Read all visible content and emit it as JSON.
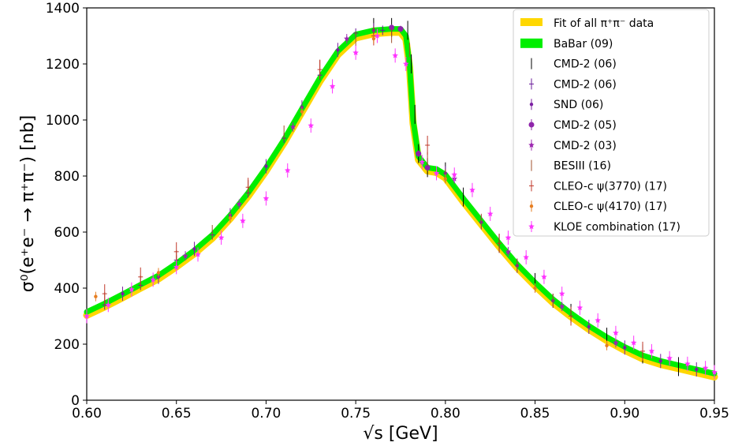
{
  "chart_data": {
    "type": "scatter",
    "title": "",
    "xlabel": "√s [GeV]",
    "ylabel": "σ⁰(e⁺e⁻ → π⁺π⁻) [nb]",
    "xlim": [
      0.6,
      0.95
    ],
    "ylim": [
      0,
      1400
    ],
    "xticks": [
      0.6,
      0.65,
      0.7,
      0.75,
      0.8,
      0.85,
      0.9,
      0.95
    ],
    "xtick_labels": [
      "0.60",
      "0.65",
      "0.70",
      "0.75",
      "0.80",
      "0.85",
      "0.90",
      "0.95"
    ],
    "yticks": [
      0,
      200,
      400,
      600,
      800,
      1000,
      1200,
      1400
    ],
    "ytick_labels": [
      "0",
      "200",
      "400",
      "600",
      "800",
      "1000",
      "1200",
      "1400"
    ],
    "grid": false,
    "legend_position": "top-right",
    "curve": {
      "x": [
        0.6,
        0.61,
        0.62,
        0.63,
        0.64,
        0.65,
        0.66,
        0.67,
        0.68,
        0.69,
        0.7,
        0.71,
        0.72,
        0.73,
        0.74,
        0.75,
        0.76,
        0.77,
        0.775,
        0.778,
        0.78,
        0.782,
        0.785,
        0.79,
        0.795,
        0.8,
        0.81,
        0.82,
        0.83,
        0.84,
        0.85,
        0.86,
        0.87,
        0.88,
        0.89,
        0.9,
        0.91,
        0.92,
        0.93,
        0.94,
        0.95
      ],
      "y": [
        315,
        345,
        378,
        412,
        445,
        488,
        535,
        590,
        660,
        740,
        830,
        930,
        1040,
        1150,
        1245,
        1305,
        1320,
        1325,
        1325,
        1300,
        1200,
        1000,
        870,
        830,
        825,
        805,
        720,
        640,
        560,
        485,
        420,
        360,
        310,
        265,
        225,
        190,
        160,
        140,
        125,
        110,
        95
      ]
    },
    "series": [
      {
        "name": "Fit of all π⁺π⁻ data",
        "style": "band",
        "color": "#ffd700"
      },
      {
        "name": "BaBar (09)",
        "style": "band",
        "color": "#00ee00"
      },
      {
        "name": "CMD-2 (06)",
        "style": "bar",
        "color": "#000000",
        "x": [
          0.76,
          0.77,
          0.779,
          0.781,
          0.783,
          0.785,
          0.79,
          0.8,
          0.81,
          0.83,
          0.85,
          0.87,
          0.89,
          0.91,
          0.93
        ],
        "y": [
          1330,
          1330,
          1320,
          1200,
          1020,
          880,
          830,
          815,
          725,
          560,
          420,
          310,
          225,
          165,
          120
        ]
      },
      {
        "name": "CMD-2 (06)",
        "style": "plus",
        "color": "#6a1b9a",
        "x": [
          0.61,
          0.63,
          0.65,
          0.67,
          0.69,
          0.71,
          0.73,
          0.75,
          0.765
        ],
        "y": [
          340,
          410,
          500,
          590,
          740,
          935,
          1160,
          1310,
          1320
        ]
      },
      {
        "name": "SND (06)",
        "style": "dot-err",
        "color": "#7b1fa2",
        "x": [
          0.62,
          0.64,
          0.66,
          0.68,
          0.7,
          0.72,
          0.74,
          0.76,
          0.8,
          0.82,
          0.84,
          0.86,
          0.88,
          0.9,
          0.92,
          0.94
        ],
        "y": [
          380,
          440,
          540,
          660,
          835,
          1045,
          1250,
          1320,
          810,
          635,
          480,
          355,
          262,
          188,
          140,
          110
        ]
      },
      {
        "name": "CMD-2 (05)",
        "style": "dot",
        "color": "#8e24aa",
        "x": [
          0.77,
          0.775,
          0.785,
          0.79
        ],
        "y": [
          1330,
          1325,
          880,
          830
        ]
      },
      {
        "name": "CMD-2 (03)",
        "style": "star",
        "color": "#9c27b0",
        "x": [
          0.655,
          0.685,
          0.715,
          0.745,
          0.805,
          0.835,
          0.865,
          0.895
        ],
        "y": [
          515,
          700,
          975,
          1290,
          790,
          530,
          335,
          205
        ]
      },
      {
        "name": "BESIII (16)",
        "style": "bar",
        "color": "#a0522d",
        "x": [
          0.61,
          0.63,
          0.65,
          0.67,
          0.69,
          0.71,
          0.73,
          0.75,
          0.76,
          0.77,
          0.78,
          0.79,
          0.8,
          0.82,
          0.84,
          0.86
        ],
        "y": [
          360,
          420,
          510,
          600,
          760,
          955,
          1190,
          1290,
          1300,
          1300,
          1250,
          860,
          800,
          640,
          480,
          355
        ]
      },
      {
        "name": "CLEO-c ψ(3770) (17)",
        "style": "plus",
        "color": "#c0392b",
        "x": [
          0.61,
          0.63,
          0.65,
          0.69,
          0.73,
          0.76,
          0.79,
          0.83,
          0.87,
          0.91
        ],
        "y": [
          380,
          440,
          530,
          760,
          1180,
          1300,
          910,
          560,
          300,
          175
        ]
      },
      {
        "name": "CLEO-c ψ(4170) (17)",
        "style": "dot-err",
        "color": "#e67e22",
        "x": [
          0.605,
          0.64,
          0.68,
          0.72,
          0.76,
          0.8,
          0.85,
          0.89
        ],
        "y": [
          370,
          455,
          650,
          1030,
          1290,
          790,
          400,
          195
        ]
      },
      {
        "name": "KLOE combination (17)",
        "style": "star",
        "color": "#ff33ff",
        "x": [
          0.6,
          0.612,
          0.625,
          0.637,
          0.65,
          0.662,
          0.675,
          0.687,
          0.7,
          0.712,
          0.725,
          0.737,
          0.75,
          0.762,
          0.772,
          0.778,
          0.787,
          0.795,
          0.805,
          0.815,
          0.825,
          0.835,
          0.845,
          0.855,
          0.865,
          0.875,
          0.885,
          0.895,
          0.905,
          0.915,
          0.925,
          0.935,
          0.945,
          0.95
        ],
        "y": [
          300,
          340,
          395,
          430,
          475,
          520,
          580,
          640,
          720,
          820,
          980,
          1120,
          1240,
          1300,
          1230,
          1200,
          850,
          810,
          805,
          750,
          665,
          580,
          510,
          440,
          380,
          330,
          285,
          240,
          205,
          175,
          150,
          130,
          115,
          100
        ]
      }
    ]
  }
}
